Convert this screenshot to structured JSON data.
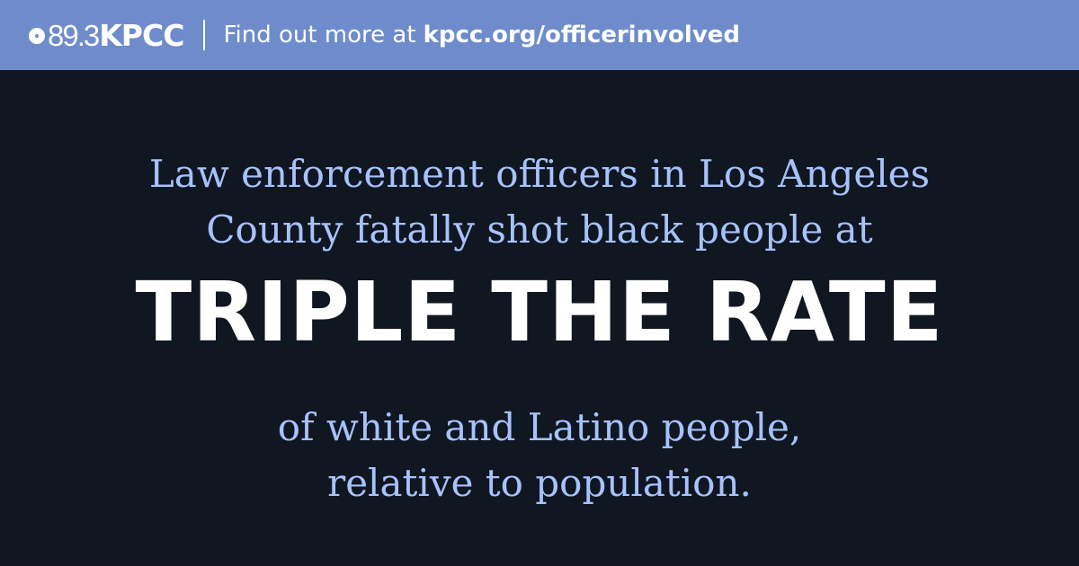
{
  "banner": {
    "logo": {
      "frequency": "89.3",
      "station": "KPCC"
    },
    "prompt": "Find out more at",
    "url": "kpcc.org/officerinvolved"
  },
  "main": {
    "intro_lines": [
      "Law enforcement officers in Los Angeles",
      "County fatally shot black people at"
    ],
    "headline": "TRIPLE THE RATE",
    "outro_lines": [
      "of white and Latino people,",
      "relative to population."
    ]
  },
  "colors": {
    "banner_background": "#6e8ccc",
    "page_background": "#111721",
    "body_text": "#a6c2ff",
    "headline_text": "#ffffff"
  },
  "icons": [
    "kpcc-logo-ring-icon"
  ]
}
